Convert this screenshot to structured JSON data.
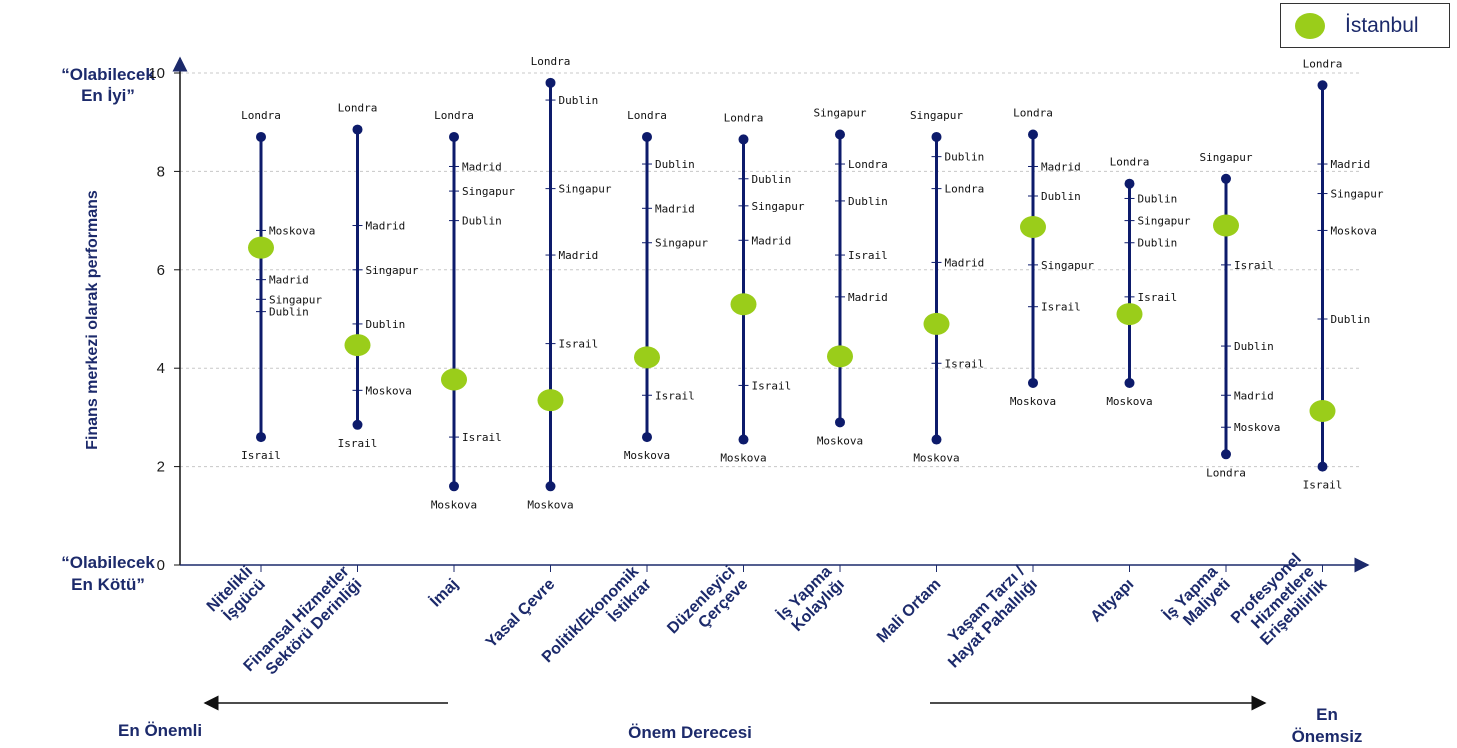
{
  "legend": {
    "label": "İstanbul"
  },
  "y_extremes": {
    "top_line1": "“Olabilecek",
    "top_line2": "En İyi”",
    "bottom_line1": "“Olabilecek",
    "bottom_line2": "En Kötü”"
  },
  "importance_axis": {
    "left": "En Önemli",
    "center": "Önem Derecesi",
    "right_line1": "En",
    "right_line2": "Önemsiz"
  },
  "colors": {
    "line": "#0d1b6b",
    "istanbul": "#9acd1a",
    "grid": "#c8c8c8",
    "text": "#1c2a6b"
  },
  "chart_data": {
    "type": "range",
    "ylabel": "Finans merkezi olarak performans",
    "ylim": [
      0,
      10
    ],
    "yticks": [
      0,
      2,
      4,
      6,
      8,
      10
    ],
    "categories": [
      {
        "lines": [
          "Nitelikli",
          "İşgücü"
        ],
        "top": {
          "city": "Londra",
          "value": 8.7
        },
        "bottom": {
          "city": "Israil",
          "value": 2.6
        },
        "ticks": [
          {
            "city": "Moskova",
            "value": 6.8
          },
          {
            "city": "Madrid",
            "value": 5.8
          },
          {
            "city": "Singapur",
            "value": 5.4
          },
          {
            "city": "Dublin",
            "value": 5.15
          }
        ],
        "istanbul": 6.45
      },
      {
        "lines": [
          "Finansal Hizmetler",
          "Sektörü Derinliği"
        ],
        "top": {
          "city": "Londra",
          "value": 8.85
        },
        "bottom": {
          "city": "Israil",
          "value": 2.85
        },
        "ticks": [
          {
            "city": "Madrid",
            "value": 6.9
          },
          {
            "city": "Singapur",
            "value": 6.0
          },
          {
            "city": "Dublin",
            "value": 4.9
          },
          {
            "city": "Moskova",
            "value": 3.55
          }
        ],
        "istanbul": 4.47
      },
      {
        "lines": [
          "İmaj"
        ],
        "top": {
          "city": "Londra",
          "value": 8.7
        },
        "bottom": {
          "city": "Moskova",
          "value": 1.6
        },
        "ticks": [
          {
            "city": "Madrid",
            "value": 8.1
          },
          {
            "city": "Singapur",
            "value": 7.6
          },
          {
            "city": "Dublin",
            "value": 7.0
          },
          {
            "city": "Israil",
            "value": 2.6
          }
        ],
        "istanbul": 3.77
      },
      {
        "lines": [
          "Yasal Çevre"
        ],
        "top": {
          "city": "Londra",
          "value": 9.8
        },
        "bottom": {
          "city": "Moskova",
          "value": 1.6
        },
        "ticks": [
          {
            "city": "Dublin",
            "value": 9.45
          },
          {
            "city": "Singapur",
            "value": 7.65
          },
          {
            "city": "Madrid",
            "value": 6.3
          },
          {
            "city": "Israil",
            "value": 4.5
          }
        ],
        "istanbul": 3.35
      },
      {
        "lines": [
          "Politik/Ekonomik",
          "İstikrar"
        ],
        "top": {
          "city": "Londra",
          "value": 8.7
        },
        "bottom": {
          "city": "Moskova",
          "value": 2.6
        },
        "ticks": [
          {
            "city": "Dublin",
            "value": 8.15
          },
          {
            "city": "Madrid",
            "value": 7.25
          },
          {
            "city": "Singapur",
            "value": 6.55
          },
          {
            "city": "Israil",
            "value": 3.45
          }
        ],
        "istanbul": 4.22
      },
      {
        "lines": [
          "Düzenleyici",
          "Çerçeve"
        ],
        "top": {
          "city": "Londra",
          "value": 8.65
        },
        "bottom": {
          "city": "Moskova",
          "value": 2.55
        },
        "ticks": [
          {
            "city": "Dublin",
            "value": 7.85
          },
          {
            "city": "Singapur",
            "value": 7.3
          },
          {
            "city": "Madrid",
            "value": 6.6
          },
          {
            "city": "Israil",
            "value": 3.65
          }
        ],
        "istanbul": 5.3
      },
      {
        "lines": [
          "İş Yapma",
          "Kolaylığı"
        ],
        "top": {
          "city": "Singapur",
          "value": 8.75
        },
        "bottom": {
          "city": "Moskova",
          "value": 2.9
        },
        "ticks": [
          {
            "city": "Londra",
            "value": 8.15
          },
          {
            "city": "Dublin",
            "value": 7.4
          },
          {
            "city": "Israil",
            "value": 6.3
          },
          {
            "city": "Madrid",
            "value": 5.45
          }
        ],
        "istanbul": 4.24
      },
      {
        "lines": [
          "Mali Ortam"
        ],
        "top": {
          "city": "Singapur",
          "value": 8.7
        },
        "bottom": {
          "city": "Moskova",
          "value": 2.55
        },
        "ticks": [
          {
            "city": "Dublin",
            "value": 8.3
          },
          {
            "city": "Londra",
            "value": 7.65
          },
          {
            "city": "Madrid",
            "value": 6.15
          },
          {
            "city": "Israil",
            "value": 4.1
          }
        ],
        "istanbul": 4.9
      },
      {
        "lines": [
          "Yaşam Tarzı /",
          "Hayat Pahalılığı"
        ],
        "top": {
          "city": "Londra",
          "value": 8.75
        },
        "bottom": {
          "city": "Moskova",
          "value": 3.7
        },
        "ticks": [
          {
            "city": "Madrid",
            "value": 8.1
          },
          {
            "city": "Dublin",
            "value": 7.5
          },
          {
            "city": "Singapur",
            "value": 6.1
          },
          {
            "city": "Israil",
            "value": 5.25
          }
        ],
        "istanbul": 6.87
      },
      {
        "lines": [
          "Altyapı"
        ],
        "top": {
          "city": "Londra",
          "value": 7.75
        },
        "bottom": {
          "city": "Moskova",
          "value": 3.7
        },
        "ticks": [
          {
            "city": "Dublin",
            "value": 7.45
          },
          {
            "city": "Singapur",
            "value": 7.0
          },
          {
            "city": "Dublin",
            "value": 6.55
          },
          {
            "city": "Israil",
            "value": 5.45
          }
        ],
        "istanbul": 5.1
      },
      {
        "lines": [
          "İş Yapma",
          "Maliyeti"
        ],
        "top": {
          "city": "Singapur",
          "value": 7.85
        },
        "bottom": {
          "city": "Londra",
          "value": 2.25
        },
        "ticks": [
          {
            "city": "Israil",
            "value": 6.1
          },
          {
            "city": "Dublin",
            "value": 4.45
          },
          {
            "city": "Madrid",
            "value": 3.45
          },
          {
            "city": "Moskova",
            "value": 2.8
          }
        ],
        "istanbul": 6.9
      },
      {
        "lines": [
          "Profesyonel",
          "Hizmetlere",
          "Erişebilirlik"
        ],
        "top": {
          "city": "Londra",
          "value": 9.75
        },
        "bottom": {
          "city": "Israil",
          "value": 2.0
        },
        "ticks": [
          {
            "city": "Madrid",
            "value": 8.15
          },
          {
            "city": "Singapur",
            "value": 7.55
          },
          {
            "city": "Moskova",
            "value": 6.8
          },
          {
            "city": "Dublin",
            "value": 5.0
          }
        ],
        "istanbul": 3.13
      }
    ]
  }
}
